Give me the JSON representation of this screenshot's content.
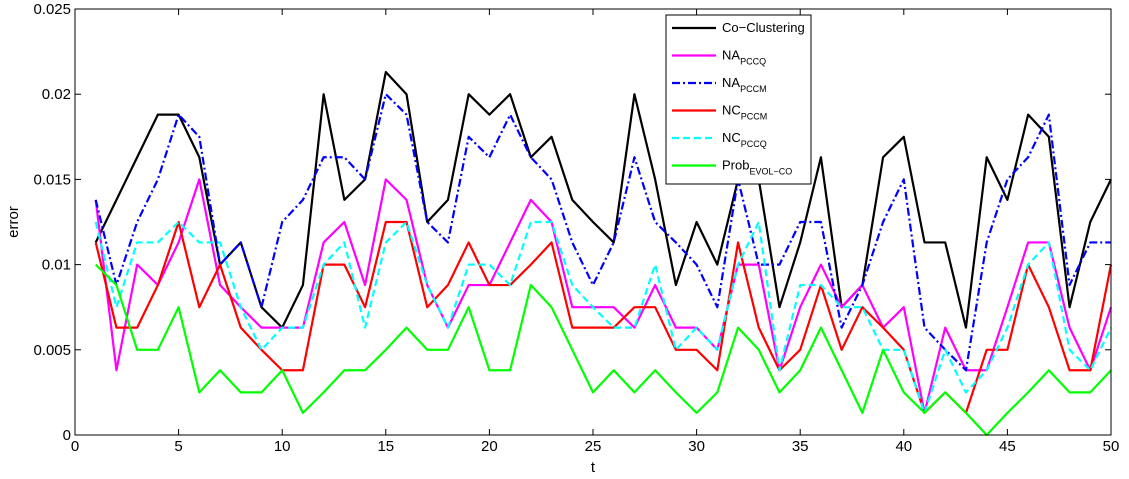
{
  "chart_data": {
    "type": "line",
    "xlabel": "t",
    "ylabel": "error",
    "xlim": [
      0,
      50
    ],
    "ylim": [
      0,
      0.025
    ],
    "xticks": [
      "0",
      "5",
      "10",
      "15",
      "20",
      "25",
      "30",
      "35",
      "40",
      "45",
      "50"
    ],
    "yticks": [
      "0",
      "0.005",
      "0.01",
      "0.015",
      "0.02",
      "0.025"
    ],
    "grid": false,
    "legend_position": "top-right",
    "x": [
      1,
      2,
      3,
      4,
      5,
      6,
      7,
      8,
      9,
      10,
      11,
      12,
      13,
      14,
      15,
      16,
      17,
      18,
      19,
      20,
      21,
      22,
      23,
      24,
      25,
      26,
      27,
      28,
      29,
      30,
      31,
      32,
      33,
      34,
      35,
      36,
      37,
      38,
      39,
      40,
      41,
      42,
      43,
      44,
      45,
      46,
      47,
      48,
      49,
      50
    ],
    "series": [
      {
        "name": "Co−Clustering",
        "name_main": "Co−Clustering",
        "name_sub": "",
        "color": "#000000",
        "dash": "solid",
        "values": [
          0.0113,
          0.0138,
          0.0163,
          0.0188,
          0.0188,
          0.0163,
          0.01,
          0.0113,
          0.0075,
          0.0063,
          0.0088,
          0.02,
          0.0138,
          0.015,
          0.0213,
          0.02,
          0.0125,
          0.0138,
          0.02,
          0.0188,
          0.02,
          0.0163,
          0.0175,
          0.0138,
          0.0125,
          0.0113,
          0.02,
          0.015,
          0.0088,
          0.0125,
          0.01,
          0.015,
          0.015,
          0.0075,
          0.0113,
          0.0163,
          0.0075,
          0.0088,
          0.0163,
          0.0175,
          0.0113,
          0.0113,
          0.0063,
          0.0163,
          0.0138,
          0.0188,
          0.0175,
          0.0075,
          0.0125,
          0.015
        ]
      },
      {
        "name": "NAPCCQ",
        "name_main": "NA",
        "name_sub": "PCCQ",
        "color": "#ff00ff",
        "dash": "solid",
        "values": [
          0.0138,
          0.0038,
          0.01,
          0.0088,
          0.0113,
          0.015,
          0.0088,
          0.0075,
          0.0063,
          0.0063,
          0.0063,
          0.0113,
          0.0125,
          0.0088,
          0.015,
          0.0138,
          0.0088,
          0.0063,
          0.0088,
          0.0088,
          0.0113,
          0.0138,
          0.0125,
          0.0075,
          0.0075,
          0.0075,
          0.0063,
          0.0088,
          0.0063,
          0.0063,
          0.005,
          0.01,
          0.01,
          0.0038,
          0.0075,
          0.01,
          0.0075,
          0.0088,
          0.0063,
          0.0075,
          0.0013,
          0.0063,
          0.0038,
          0.0038,
          0.0075,
          0.0113,
          0.0113,
          0.0063,
          0.0038,
          0.0075
        ]
      },
      {
        "name": "NAPCCM",
        "name_main": "NA",
        "name_sub": "PCCM",
        "color": "#0000ff",
        "dash": "dashdot",
        "values": [
          0.0138,
          0.0088,
          0.0125,
          0.015,
          0.0188,
          0.0175,
          0.01,
          0.0113,
          0.0075,
          0.0125,
          0.0138,
          0.0163,
          0.0163,
          0.015,
          0.02,
          0.0188,
          0.0125,
          0.0113,
          0.0175,
          0.0163,
          0.0188,
          0.0163,
          0.015,
          0.0113,
          0.0088,
          0.0113,
          0.0163,
          0.0125,
          0.0113,
          0.01,
          0.0075,
          0.015,
          0.01,
          0.01,
          0.0125,
          0.0125,
          0.0063,
          0.0088,
          0.0125,
          0.015,
          0.0063,
          0.005,
          0.0038,
          0.0113,
          0.015,
          0.0163,
          0.0188,
          0.0088,
          0.0113,
          0.0113
        ]
      },
      {
        "name": "NCPCCM",
        "name_main": "NC",
        "name_sub": "PCCM",
        "color": "#ff0000",
        "dash": "solid",
        "values": [
          0.0113,
          0.0063,
          0.0063,
          0.0088,
          0.0125,
          0.0075,
          0.01,
          0.0063,
          0.005,
          0.0038,
          0.0038,
          0.01,
          0.01,
          0.0075,
          0.0125,
          0.0125,
          0.0075,
          0.0088,
          0.0113,
          0.0088,
          0.0088,
          0.01,
          0.0113,
          0.0063,
          0.0063,
          0.0063,
          0.0075,
          0.0075,
          0.005,
          0.005,
          0.0038,
          0.0113,
          0.0063,
          0.0038,
          0.005,
          0.0088,
          0.005,
          0.0075,
          0.0063,
          0.005,
          0.0013,
          0.0025,
          0.0013,
          0.005,
          0.005,
          0.01,
          0.0075,
          0.0038,
          0.0038,
          0.01
        ]
      },
      {
        "name": "NCPCCQ",
        "name_main": "NC",
        "name_sub": "PCCQ",
        "color": "#00ffff",
        "dash": "dashed",
        "values": [
          0.0125,
          0.0075,
          0.0113,
          0.0113,
          0.0125,
          0.0113,
          0.0113,
          0.0075,
          0.005,
          0.0063,
          0.0063,
          0.01,
          0.0113,
          0.0063,
          0.0113,
          0.0125,
          0.0088,
          0.0063,
          0.01,
          0.01,
          0.0088,
          0.0125,
          0.0125,
          0.0088,
          0.0075,
          0.0063,
          0.0063,
          0.01,
          0.005,
          0.0063,
          0.005,
          0.01,
          0.0125,
          0.0038,
          0.0088,
          0.0088,
          0.0075,
          0.0075,
          0.005,
          0.005,
          0.0013,
          0.005,
          0.0025,
          0.0038,
          0.0063,
          0.01,
          0.0113,
          0.005,
          0.0038,
          0.0063
        ]
      },
      {
        "name": "ProbEVOL−CO",
        "name_main": "Prob",
        "name_sub": "EVOL−CO",
        "color": "#00ff00",
        "dash": "solid",
        "values": [
          0.01,
          0.0088,
          0.005,
          0.005,
          0.0075,
          0.0025,
          0.0038,
          0.0025,
          0.0025,
          0.0038,
          0.0013,
          0.0025,
          0.0038,
          0.0038,
          0.005,
          0.0063,
          0.005,
          0.005,
          0.0075,
          0.0038,
          0.0038,
          0.0088,
          0.0075,
          0.005,
          0.0025,
          0.0038,
          0.0025,
          0.0038,
          0.0025,
          0.0013,
          0.0025,
          0.0063,
          0.005,
          0.0025,
          0.0038,
          0.0063,
          0.0038,
          0.0013,
          0.005,
          0.0025,
          0.0013,
          0.0025,
          0.0013,
          0.0,
          0.0013,
          0.0025,
          0.0038,
          0.0025,
          0.0025,
          0.0038
        ]
      }
    ]
  }
}
